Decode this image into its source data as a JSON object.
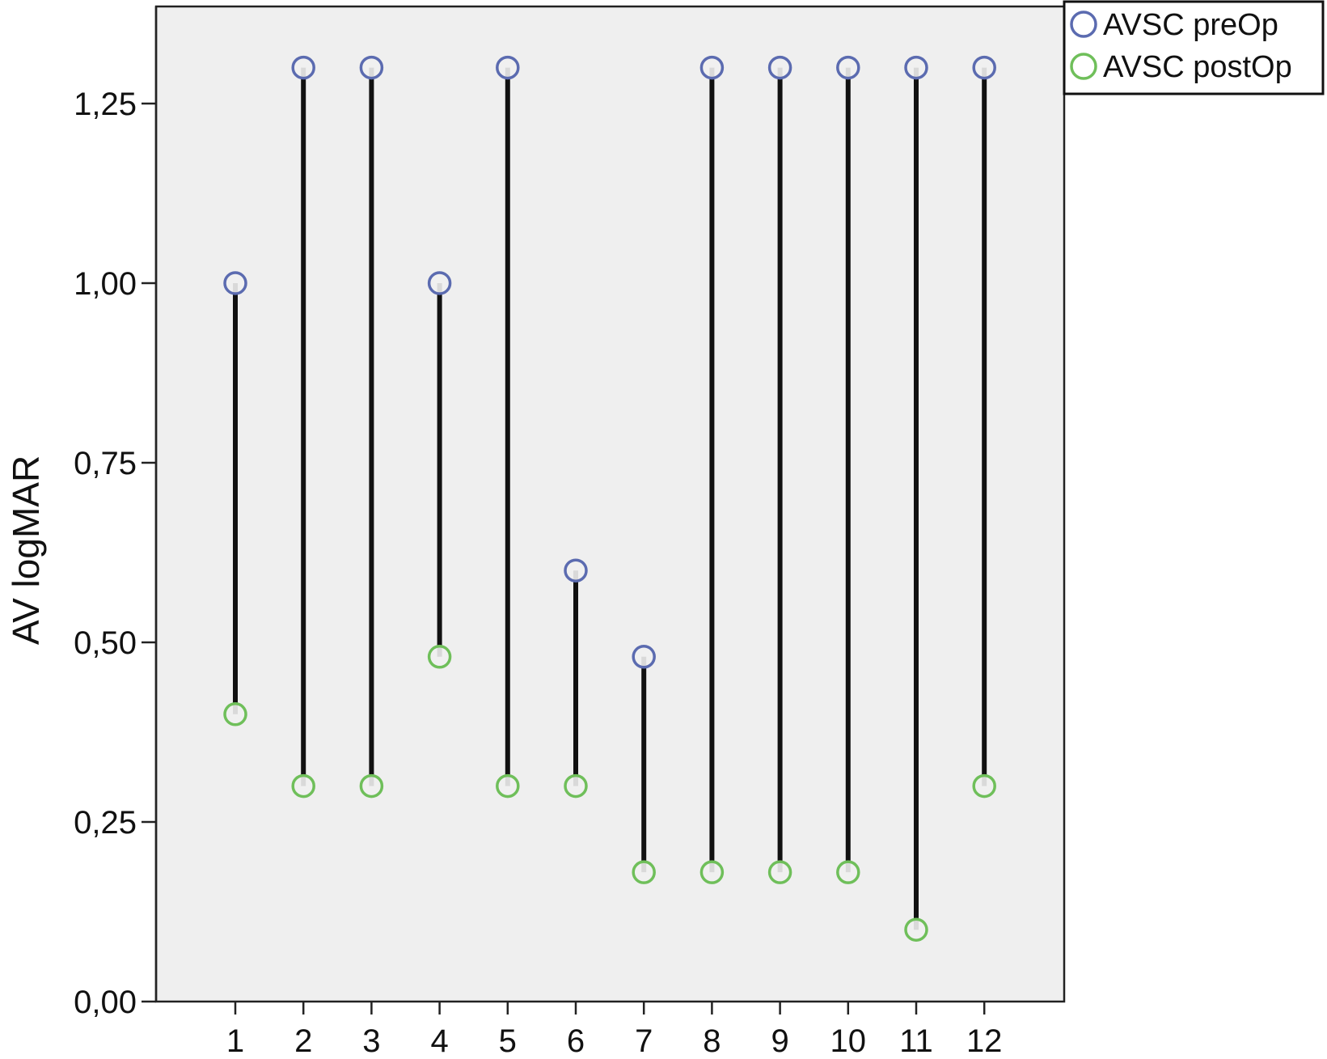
{
  "chart_data": {
    "type": "dumbbell",
    "title": "",
    "xlabel": "",
    "ylabel": "AV logMAR",
    "categories": [
      "1",
      "2",
      "3",
      "4",
      "5",
      "6",
      "7",
      "8",
      "9",
      "10",
      "11",
      "12"
    ],
    "ylim": [
      0,
      1.35
    ],
    "yticks": [
      0,
      0.25,
      0.5,
      0.75,
      1.0,
      1.25
    ],
    "ytick_labels": [
      "0,00",
      "0,25",
      "0,50",
      "0,75",
      "1,00",
      "1,25"
    ],
    "series": [
      {
        "name": "AVSC preOp",
        "color": "#5b6bb0",
        "values": [
          1.0,
          1.3,
          1.3,
          1.0,
          1.3,
          0.6,
          0.48,
          1.3,
          1.3,
          1.3,
          1.3,
          1.3
        ]
      },
      {
        "name": "AVSC postOp",
        "color": "#6fbf5a",
        "values": [
          0.4,
          0.3,
          0.3,
          0.48,
          0.3,
          0.3,
          0.18,
          0.18,
          0.18,
          0.18,
          0.1,
          0.3
        ]
      }
    ],
    "connector_color": "#111111",
    "plot_background": "#efefef",
    "grid": false,
    "legend_position": "top-right"
  }
}
